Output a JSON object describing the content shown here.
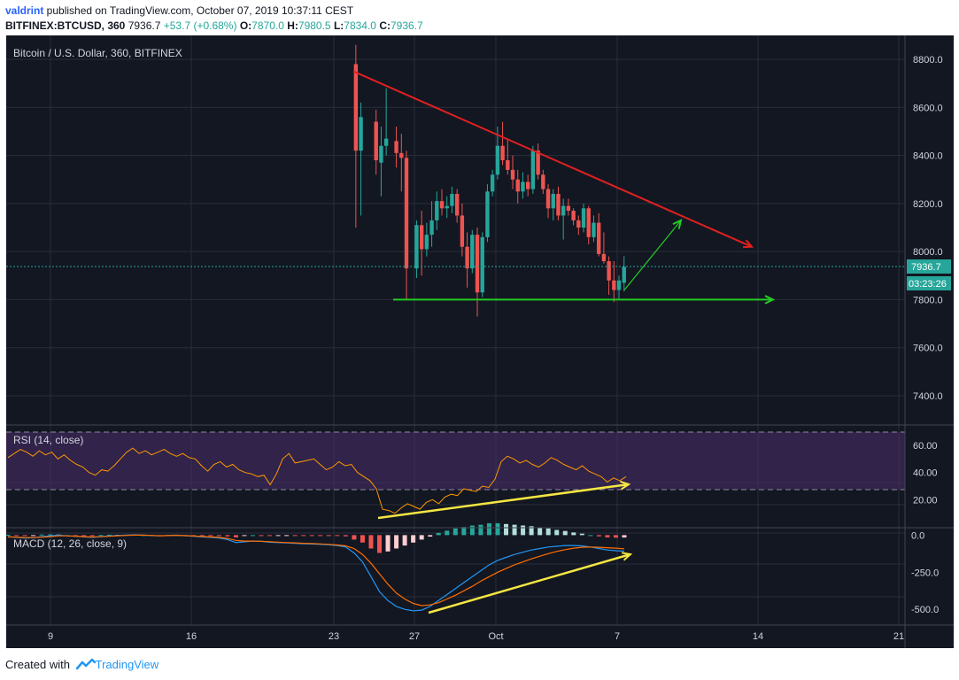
{
  "header": {
    "author": "valdrint",
    "published": " published on TradingView.com, October 07, 2019 10:37:11 CEST",
    "symbol": "BITFINEX:BTCUSD, 360",
    "last": "7936.7",
    "change": "+53.7 (+0.68%)",
    "o_label": "O:",
    "o_value": "7870.0",
    "h_label": "H:",
    "h_value": "7980.5",
    "l_label": "L:",
    "l_value": "7834.0",
    "c_label": "C:",
    "c_value": "7936.7"
  },
  "footer": {
    "created_with": "Created with",
    "brand": "TradingView"
  },
  "colors": {
    "background": "#131722",
    "grid": "#2a2e39",
    "text": "#d1d4dc",
    "up": "#26a69a",
    "down": "#ef5350",
    "rsi_line": "#ff9800",
    "rsi_band": "#4a2d6b",
    "macd": "#2196f3",
    "signal": "#ff6d00",
    "resistance": "#e02020",
    "support": "#22cc22",
    "divergence": "#f5e642"
  },
  "chart_data": [
    {
      "type": "candlestick",
      "title": "Bitcoin / U.S. Dollar, 360, BITFINEX",
      "ylim": [
        7240,
        8850
      ],
      "y_ticks": [
        "8800.0",
        "8600.0",
        "8400.0",
        "8200.0",
        "8000.0",
        "7800.0",
        "7600.0",
        "7400.0"
      ],
      "x_ticks": [
        "9",
        "16",
        "23",
        "27",
        "Oct",
        "7",
        "14",
        "21"
      ],
      "last_price_label": "7936.7",
      "countdown_label": "03:23:26",
      "candles": [
        {
          "date": "Sep 24",
          "o": 8780,
          "h": 8860,
          "l": 8100,
          "c": 8420
        },
        {
          "date": "Sep 24",
          "o": 8420,
          "h": 8620,
          "l": 8150,
          "c": 8560
        },
        {
          "date": "Sep 25",
          "o": 8540,
          "h": 8590,
          "l": 8320,
          "c": 8380
        },
        {
          "date": "Sep 25",
          "o": 8370,
          "h": 8520,
          "l": 8230,
          "c": 8440
        },
        {
          "date": "Sep 25",
          "o": 8440,
          "h": 8680,
          "l": 8400,
          "c": 8470
        },
        {
          "date": "Sep 26",
          "o": 8460,
          "h": 8520,
          "l": 8350,
          "c": 8410
        },
        {
          "date": "Sep 26",
          "o": 8410,
          "h": 8490,
          "l": 8250,
          "c": 8390
        },
        {
          "date": "Sep 26",
          "o": 8390,
          "h": 8420,
          "l": 7800,
          "c": 7930
        },
        {
          "date": "Sep 27",
          "o": 7930,
          "h": 8130,
          "l": 7890,
          "c": 8110
        },
        {
          "date": "Sep 27",
          "o": 8110,
          "h": 8170,
          "l": 7900,
          "c": 8010
        },
        {
          "date": "Sep 27",
          "o": 8010,
          "h": 8120,
          "l": 7980,
          "c": 8070
        },
        {
          "date": "Sep 27",
          "o": 8070,
          "h": 8210,
          "l": 8020,
          "c": 8130
        },
        {
          "date": "Sep 28",
          "o": 8130,
          "h": 8250,
          "l": 8090,
          "c": 8210
        },
        {
          "date": "Sep 28",
          "o": 8210,
          "h": 8260,
          "l": 8150,
          "c": 8180
        },
        {
          "date": "Sep 28",
          "o": 8180,
          "h": 8230,
          "l": 8140,
          "c": 8190
        },
        {
          "date": "Sep 28",
          "o": 8190,
          "h": 8270,
          "l": 8160,
          "c": 8240
        },
        {
          "date": "Sep 29",
          "o": 8240,
          "h": 8260,
          "l": 8120,
          "c": 8150
        },
        {
          "date": "Sep 29",
          "o": 8150,
          "h": 8200,
          "l": 7980,
          "c": 8020
        },
        {
          "date": "Sep 29",
          "o": 8020,
          "h": 8080,
          "l": 7850,
          "c": 7930
        },
        {
          "date": "Sep 29",
          "o": 7930,
          "h": 8090,
          "l": 7910,
          "c": 8070
        },
        {
          "date": "Sep 30",
          "o": 8070,
          "h": 8100,
          "l": 7730,
          "c": 7830
        },
        {
          "date": "Sep 30",
          "o": 7830,
          "h": 8080,
          "l": 7810,
          "c": 8060
        },
        {
          "date": "Sep 30",
          "o": 8060,
          "h": 8280,
          "l": 8040,
          "c": 8250
        },
        {
          "date": "Sep 30",
          "o": 8250,
          "h": 8340,
          "l": 8230,
          "c": 8320
        },
        {
          "date": "Oct 1",
          "o": 8320,
          "h": 8520,
          "l": 8300,
          "c": 8440
        },
        {
          "date": "Oct 1",
          "o": 8440,
          "h": 8540,
          "l": 8360,
          "c": 8380
        },
        {
          "date": "Oct 1",
          "o": 8380,
          "h": 8470,
          "l": 8320,
          "c": 8340
        },
        {
          "date": "Oct 1",
          "o": 8340,
          "h": 8400,
          "l": 8260,
          "c": 8300
        },
        {
          "date": "Oct 2",
          "o": 8300,
          "h": 8340,
          "l": 8200,
          "c": 8250
        },
        {
          "date": "Oct 2",
          "o": 8250,
          "h": 8330,
          "l": 8220,
          "c": 8290
        },
        {
          "date": "Oct 2",
          "o": 8290,
          "h": 8320,
          "l": 8230,
          "c": 8260
        },
        {
          "date": "Oct 2",
          "o": 8260,
          "h": 8440,
          "l": 8240,
          "c": 8420
        },
        {
          "date": "Oct 3",
          "o": 8420,
          "h": 8450,
          "l": 8300,
          "c": 8320
        },
        {
          "date": "Oct 3",
          "o": 8320,
          "h": 8340,
          "l": 8240,
          "c": 8260
        },
        {
          "date": "Oct 3",
          "o": 8260,
          "h": 8280,
          "l": 8140,
          "c": 8180
        },
        {
          "date": "Oct 3",
          "o": 8180,
          "h": 8260,
          "l": 8130,
          "c": 8240
        },
        {
          "date": "Oct 4",
          "o": 8240,
          "h": 8270,
          "l": 8130,
          "c": 8150
        },
        {
          "date": "Oct 4",
          "o": 8150,
          "h": 8220,
          "l": 8050,
          "c": 8190
        },
        {
          "date": "Oct 4",
          "o": 8190,
          "h": 8220,
          "l": 8150,
          "c": 8170
        },
        {
          "date": "Oct 4",
          "o": 8170,
          "h": 8180,
          "l": 8110,
          "c": 8130
        },
        {
          "date": "Oct 5",
          "o": 8130,
          "h": 8150,
          "l": 8070,
          "c": 8100
        },
        {
          "date": "Oct 5",
          "o": 8100,
          "h": 8200,
          "l": 8080,
          "c": 8180
        },
        {
          "date": "Oct 5",
          "o": 8180,
          "h": 8190,
          "l": 8030,
          "c": 8060
        },
        {
          "date": "Oct 5",
          "o": 8060,
          "h": 8150,
          "l": 8040,
          "c": 8120
        },
        {
          "date": "Oct 6",
          "o": 8120,
          "h": 8160,
          "l": 7980,
          "c": 7990
        },
        {
          "date": "Oct 6",
          "o": 7990,
          "h": 8080,
          "l": 7950,
          "c": 7960
        },
        {
          "date": "Oct 6",
          "o": 7960,
          "h": 7980,
          "l": 7820,
          "c": 7880
        },
        {
          "date": "Oct 6",
          "o": 7880,
          "h": 7960,
          "l": 7790,
          "c": 7840
        },
        {
          "date": "Oct 7",
          "o": 7840,
          "h": 7900,
          "l": 7800,
          "c": 7880
        },
        {
          "date": "Oct 7",
          "o": 7870,
          "h": 7980.5,
          "l": 7834,
          "c": 7936.7
        }
      ],
      "lines": [
        {
          "kind": "resistance",
          "from": {
            "date": "Sep 24",
            "price": 8750
          },
          "to": {
            "date": "Oct 14",
            "price": 8020
          }
        },
        {
          "kind": "support",
          "from": {
            "date": "Sep 26",
            "price": 7800
          },
          "to": {
            "date": "Oct 9",
            "price": 7800
          }
        },
        {
          "kind": "projection",
          "from": {
            "date": "Oct 7",
            "price": 7840
          },
          "to": {
            "date": "Oct 10",
            "price": 8130
          }
        }
      ]
    },
    {
      "type": "line",
      "title": "RSI (14, close)",
      "ylim": [
        0,
        75
      ],
      "y_ticks": [
        "60.00",
        "40.00",
        "20.00"
      ],
      "upper_band": 70,
      "lower_band": 30,
      "values": [
        51,
        54,
        57,
        55,
        52,
        56,
        53,
        55,
        50,
        53,
        49,
        46,
        44,
        40,
        38,
        42,
        41,
        45,
        50,
        55,
        58,
        54,
        56,
        53,
        55,
        57,
        54,
        52,
        54,
        51,
        50,
        45,
        41,
        46,
        48,
        44,
        46,
        42,
        40,
        39,
        37,
        38,
        31,
        39,
        50,
        54,
        47,
        48,
        49,
        50,
        46,
        42,
        44,
        48,
        45,
        46,
        40,
        37,
        34,
        28,
        13,
        12,
        10,
        14,
        17,
        15,
        13,
        18,
        20,
        17,
        22,
        24,
        23,
        28,
        27,
        26,
        30,
        29,
        35,
        48,
        52,
        50,
        47,
        49,
        46,
        44,
        47,
        51,
        49,
        46,
        44,
        42,
        45,
        41,
        39,
        37,
        33,
        36,
        34,
        37
      ]
    },
    {
      "type": "line",
      "title": "MACD (12, 26, close, 9)",
      "ylim": [
        -600,
        50
      ],
      "y_ticks": [
        "0.0",
        "-250.0",
        "-500.0"
      ],
      "series": [
        {
          "values": [
            -10,
            -15,
            -20,
            -18,
            -10,
            -5,
            0,
            -5,
            -8,
            -12,
            -15,
            -10,
            -5,
            -3,
            0,
            2,
            0,
            -3,
            -5,
            -2,
            0,
            -5,
            -8,
            -12,
            -15,
            -20,
            -30,
            -50,
            -45,
            -40,
            -42,
            -48,
            -50,
            -52,
            -55,
            -58,
            -60,
            -62,
            -65,
            -70,
            -80,
            -120,
            -180,
            -280,
            -380,
            -440,
            -480,
            -500,
            -510,
            -505,
            -480,
            -440,
            -400,
            -360,
            -320,
            -280,
            -240,
            -200,
            -170,
            -150,
            -130,
            -115,
            -100,
            -90,
            -80,
            -75,
            -70,
            -70,
            -72,
            -80,
            -90,
            -100,
            -105,
            -108
          ]
        },
        {
          "values": [
            -12,
            -14,
            -16,
            -17,
            -14,
            -10,
            -5,
            -5,
            -7,
            -10,
            -12,
            -11,
            -8,
            -5,
            -2,
            0,
            0,
            -2,
            -4,
            -3,
            -1,
            -3,
            -6,
            -9,
            -12,
            -15,
            -22,
            -35,
            -40,
            -40,
            -41,
            -44,
            -47,
            -50,
            -52,
            -55,
            -57,
            -59,
            -62,
            -66,
            -72,
            -90,
            -130,
            -190,
            -260,
            -330,
            -390,
            -430,
            -460,
            -475,
            -470,
            -455,
            -430,
            -405,
            -375,
            -345,
            -310,
            -280,
            -250,
            -225,
            -200,
            -180,
            -160,
            -142,
            -125,
            -110,
            -98,
            -88,
            -82,
            -80,
            -82,
            -85,
            -88,
            -92
          ]
        }
      ],
      "histogram": [
        2,
        -1,
        -4,
        -1,
        4,
        5,
        5,
        0,
        -1,
        -2,
        -3,
        1,
        3,
        2,
        2,
        2,
        0,
        -1,
        -1,
        1,
        1,
        -2,
        -2,
        -3,
        -3,
        -5,
        -8,
        -15,
        -5,
        0,
        -1,
        -4,
        -3,
        -2,
        -3,
        -3,
        -3,
        -3,
        -3,
        -4,
        -8,
        -30,
        -50,
        -90,
        -120,
        -110,
        -90,
        -70,
        -50,
        -30,
        -10,
        15,
        30,
        45,
        55,
        65,
        70,
        80,
        80,
        75,
        70,
        65,
        60,
        52,
        45,
        35,
        28,
        18,
        10,
        0,
        -8,
        -15,
        -17,
        -16
      ]
    }
  ]
}
